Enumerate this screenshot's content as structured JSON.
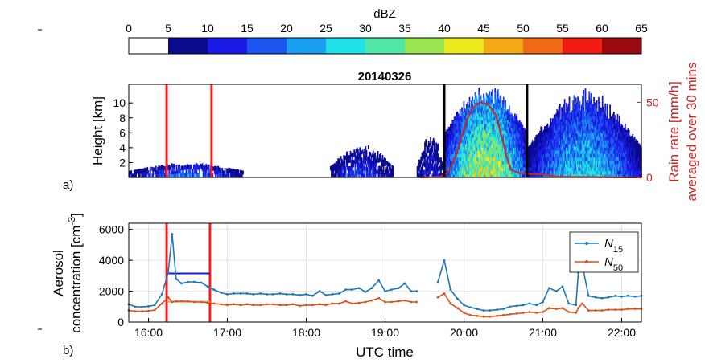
{
  "chart_data": [
    {
      "type": "colorbar",
      "label": "dBZ",
      "ticks": [
        "0",
        "5",
        "10",
        "15",
        "20",
        "25",
        "30",
        "35",
        "40",
        "45",
        "50",
        "55",
        "60",
        "65"
      ],
      "colors": [
        "#ffffff",
        "#0a0a8f",
        "#1a1ae6",
        "#1c56f0",
        "#1aa0f2",
        "#21e2e8",
        "#4fe8a8",
        "#9ae650",
        "#ece81e",
        "#f5a815",
        "#f06a16",
        "#f01c14",
        "#9c0a10"
      ]
    },
    {
      "type": "heatmap",
      "panel_label": "a)",
      "title": "20140326",
      "ylabel": "Height [km]",
      "y_ticks": [
        "2",
        "4",
        "6",
        "8",
        "10"
      ],
      "ylim": [
        0,
        12.5
      ],
      "xlim": [
        15.75,
        22.25
      ],
      "right_axis": {
        "label_line1": "Rain rate [mm/h]",
        "label_line2": "averaged over 30 mins",
        "ticks": [
          "0",
          "50"
        ],
        "ylim": [
          0,
          62
        ],
        "color": "#c62828"
      },
      "rain_rate": {
        "x": [
          19.45,
          19.7,
          19.8,
          19.9,
          20.0,
          20.05,
          20.1,
          20.2,
          20.3,
          20.4,
          20.5,
          20.55,
          20.6,
          20.7,
          20.8,
          21.0,
          21.2,
          22.25
        ],
        "y": [
          0,
          0.5,
          3,
          15,
          32,
          40,
          46,
          50,
          49,
          42,
          23,
          12,
          5,
          3,
          2.5,
          2,
          0.5,
          0
        ]
      },
      "red_vlines": [
        16.23,
        16.8
      ],
      "black_vlines": [
        19.75,
        20.8
      ],
      "echo_regions": [
        {
          "x": [
            15.75,
            17.2
          ],
          "top_km": [
            0.9,
            2.0
          ],
          "max_dbz": 22
        },
        {
          "x": [
            18.3,
            19.1
          ],
          "top_km": [
            1.5,
            4.5
          ],
          "max_dbz": 18
        },
        {
          "x": [
            19.4,
            19.75
          ],
          "top_km": [
            1.5,
            6.0
          ],
          "max_dbz": 15
        },
        {
          "x": [
            19.75,
            20.8
          ],
          "top_km": [
            6.0,
            12.5
          ],
          "max_dbz": 48
        },
        {
          "x": [
            20.8,
            22.25
          ],
          "top_km": [
            4.0,
            12.0
          ],
          "max_dbz": 32
        }
      ]
    },
    {
      "type": "line",
      "panel_label": "b)",
      "xlabel": "UTC time",
      "ylabel_line1": "Aerosol",
      "ylabel_line2": "concentration [cm",
      "ylabel_sup": "-3",
      "ylabel_tail": "]",
      "ylim": [
        0,
        6400
      ],
      "xlim": [
        15.75,
        22.25
      ],
      "y_ticks": [
        "0",
        "2000",
        "4000",
        "6000"
      ],
      "x_ticks": [
        "16:00",
        "17:00",
        "18:00",
        "19:00",
        "20:00",
        "21:00",
        "22:00"
      ],
      "x_tick_values": [
        16,
        17,
        18,
        19,
        20,
        21,
        22
      ],
      "red_vlines": [
        16.23,
        16.78
      ],
      "series": [
        {
          "name": "N",
          "name_sub": "15",
          "color": "#1f77b4",
          "x": [
            15.75,
            15.83,
            15.92,
            16.0,
            16.08,
            16.17,
            16.25,
            16.3,
            16.35,
            16.42,
            16.5,
            16.58,
            16.67,
            16.75,
            16.83,
            16.92,
            17.0,
            17.08,
            17.17,
            17.25,
            17.33,
            17.42,
            17.5,
            17.58,
            17.67,
            17.75,
            17.83,
            17.92,
            18.0,
            18.08,
            18.17,
            18.25,
            18.33,
            18.42,
            18.5,
            18.58,
            18.67,
            18.75,
            18.83,
            18.92,
            19.0,
            19.08,
            19.17,
            19.25,
            19.33,
            19.4,
            19.67,
            19.75,
            19.83,
            19.92,
            20.0,
            20.08,
            20.17,
            20.25,
            20.33,
            20.42,
            20.5,
            20.58,
            20.67,
            20.75,
            20.83,
            20.92,
            21.0,
            21.08,
            21.17,
            21.25,
            21.33,
            21.42,
            21.45,
            21.5,
            21.58,
            21.67,
            21.75,
            21.83,
            21.92,
            22.0,
            22.08,
            22.17,
            22.25
          ],
          "y": [
            1150,
            1000,
            980,
            1020,
            1100,
            1800,
            3200,
            5700,
            2800,
            2500,
            2600,
            2600,
            2550,
            2300,
            2100,
            1900,
            1800,
            1850,
            1850,
            1850,
            1800,
            1850,
            1800,
            1800,
            1850,
            1800,
            1800,
            1750,
            1800,
            1700,
            2000,
            1750,
            1800,
            1850,
            2100,
            2100,
            2200,
            1950,
            2200,
            2700,
            2000,
            2100,
            2200,
            2500,
            2000,
            2000,
            2600,
            4000,
            2100,
            1500,
            1100,
            950,
            850,
            750,
            750,
            800,
            850,
            1000,
            1050,
            1100,
            1200,
            1100,
            1300,
            2200,
            2000,
            2300,
            1200,
            1100,
            3200,
            3700,
            1700,
            1600,
            1550,
            1600,
            1700,
            1650,
            1700,
            1650,
            1700
          ]
        },
        {
          "name": "N",
          "name_sub": "50",
          "color": "#d95319",
          "x": [
            15.75,
            15.83,
            15.92,
            16.0,
            16.08,
            16.17,
            16.25,
            16.3,
            16.35,
            16.42,
            16.5,
            16.58,
            16.67,
            16.75,
            16.83,
            16.92,
            17.0,
            17.08,
            17.17,
            17.25,
            17.33,
            17.42,
            17.5,
            17.58,
            17.67,
            17.75,
            17.83,
            17.92,
            18.0,
            18.08,
            18.17,
            18.25,
            18.33,
            18.42,
            18.5,
            18.58,
            18.67,
            18.75,
            18.83,
            18.92,
            19.0,
            19.08,
            19.17,
            19.25,
            19.33,
            19.4,
            19.67,
            19.75,
            19.83,
            19.92,
            20.0,
            20.08,
            20.17,
            20.25,
            20.33,
            20.42,
            20.5,
            20.58,
            20.67,
            20.75,
            20.83,
            20.92,
            21.0,
            21.08,
            21.17,
            21.25,
            21.33,
            21.42,
            21.45,
            21.5,
            21.58,
            21.67,
            21.75,
            21.83,
            21.92,
            22.0,
            22.08,
            22.17,
            22.25
          ],
          "y": [
            750,
            700,
            700,
            720,
            780,
            1200,
            1600,
            1300,
            1350,
            1350,
            1350,
            1300,
            1300,
            1250,
            1200,
            1150,
            1100,
            1150,
            1100,
            1150,
            1100,
            1100,
            1150,
            1150,
            1100,
            1100,
            1150,
            1050,
            1100,
            1100,
            1150,
            1100,
            1200,
            1200,
            1350,
            1200,
            1250,
            1300,
            1400,
            1550,
            1300,
            1300,
            1350,
            1400,
            1300,
            1300,
            1600,
            1850,
            1200,
            900,
            600,
            450,
            400,
            350,
            350,
            400,
            450,
            500,
            550,
            600,
            650,
            600,
            650,
            900,
            850,
            900,
            650,
            600,
            900,
            1200,
            750,
            750,
            750,
            800,
            800,
            800,
            850,
            850,
            850
          ]
        }
      ],
      "blue_hline": {
        "x": [
          16.25,
          16.78
        ],
        "y": 3150,
        "color": "#1a1ae6"
      },
      "orange_hline": {
        "x": [
          16.25,
          16.78
        ],
        "y": 1320,
        "color": "#e8a13a"
      },
      "legend": "top-right"
    }
  ]
}
